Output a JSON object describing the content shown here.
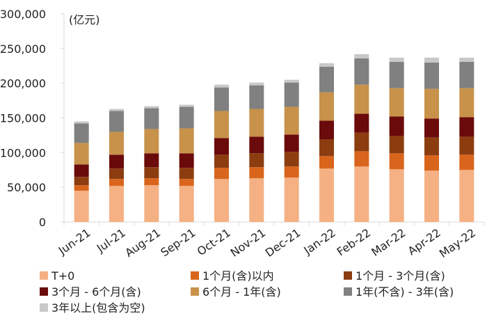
{
  "chart_data": {
    "type": "bar",
    "stacked": true,
    "unit_label": "(亿元)",
    "categories": [
      "Jun-21",
      "Jul-21",
      "Aug-21",
      "Sep-21",
      "Oct-21",
      "Nov-21",
      "Dec-21",
      "Jan-22",
      "Feb-22",
      "Mar-22",
      "Apr-22",
      "May-22"
    ],
    "ylim": [
      0,
      300000
    ],
    "yticks": [
      "0",
      "50,000",
      "100,000",
      "150,000",
      "200,000",
      "250,000",
      "300,000"
    ],
    "ytick_values": [
      0,
      50000,
      100000,
      150000,
      200000,
      250000,
      300000
    ],
    "grid": false,
    "legend_position": "bottom",
    "series": [
      {
        "name": "T+0",
        "color": "#F5B183",
        "values": [
          45000,
          52000,
          53000,
          52000,
          62000,
          63000,
          64000,
          77000,
          80000,
          76000,
          74000,
          75000
        ]
      },
      {
        "name": "1个月(含)以内",
        "color": "#D9651C",
        "values": [
          8000,
          10000,
          10000,
          10000,
          16000,
          16000,
          16000,
          18000,
          22000,
          23000,
          22000,
          22000
        ]
      },
      {
        "name": "1个月 - 3个月(含)",
        "color": "#8C3D10",
        "values": [
          12000,
          15000,
          16000,
          16000,
          19000,
          20000,
          21000,
          24000,
          27000,
          25000,
          26000,
          26000
        ]
      },
      {
        "name": "3个月 - 6个月(含)",
        "color": "#6B0A0A",
        "values": [
          18000,
          20000,
          20000,
          21000,
          24000,
          24000,
          25000,
          27000,
          27000,
          28000,
          27000,
          28000
        ]
      },
      {
        "name": "6个月 - 1年(含)",
        "color": "#C8924A",
        "values": [
          31000,
          33000,
          35000,
          36000,
          39000,
          40000,
          40000,
          41000,
          42000,
          41000,
          43000,
          42000
        ]
      },
      {
        "name": "1年(不含) - 3年(含)",
        "color": "#808080",
        "values": [
          28000,
          30000,
          30000,
          31000,
          34000,
          34000,
          35000,
          37000,
          38000,
          38000,
          38000,
          38000
        ]
      },
      {
        "name": "3年以上(包含为空)",
        "color": "#C8C8C8",
        "values": [
          3000,
          3000,
          3000,
          3000,
          4000,
          4000,
          4000,
          5000,
          6000,
          6000,
          7000,
          6000
        ]
      }
    ]
  }
}
